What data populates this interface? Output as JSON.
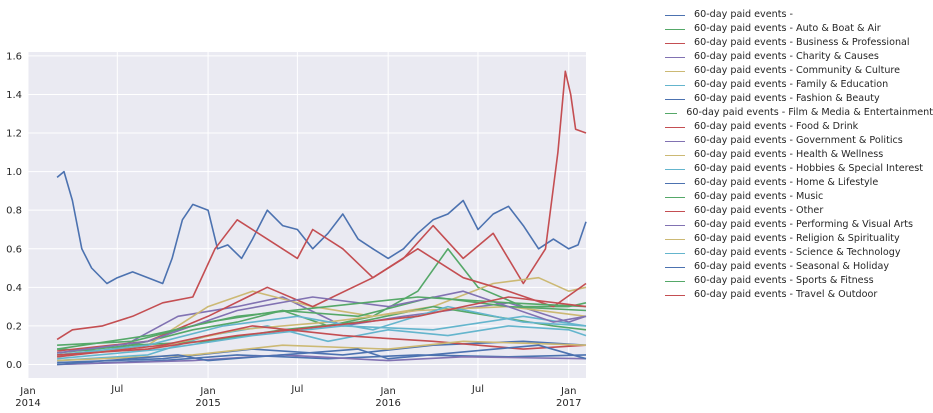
{
  "chart_data": {
    "type": "line",
    "title": "",
    "xlabel": "",
    "ylabel": "",
    "grid": true,
    "legend_position": "outside-right",
    "x_range": [
      "2014-01-01",
      "2017-02-05"
    ],
    "ylim": [
      -0.07,
      1.62
    ],
    "y_ticks": [
      0.0,
      0.2,
      0.4,
      0.6,
      0.8,
      1.0,
      1.2,
      1.4,
      1.6
    ],
    "x_ticks": [
      {
        "date": "2014-01-01",
        "label": "Jan",
        "sub": "2014"
      },
      {
        "date": "2014-07-01",
        "label": "Jul",
        "sub": ""
      },
      {
        "date": "2015-01-01",
        "label": "Jan",
        "sub": "2015"
      },
      {
        "date": "2015-07-01",
        "label": "Jul",
        "sub": ""
      },
      {
        "date": "2016-01-01",
        "label": "Jan",
        "sub": "2016"
      },
      {
        "date": "2016-07-01",
        "label": "Jul",
        "sub": ""
      },
      {
        "date": "2017-01-01",
        "label": "Jan",
        "sub": "2017"
      }
    ],
    "series": [
      {
        "name": "60-day paid events -",
        "color": "#4c72b0",
        "points": [
          [
            "2014-03-01",
            0.97
          ],
          [
            "2014-03-15",
            1.0
          ],
          [
            "2014-04-01",
            0.85
          ],
          [
            "2014-04-20",
            0.6
          ],
          [
            "2014-05-10",
            0.5
          ],
          [
            "2014-06-10",
            0.42
          ],
          [
            "2014-07-01",
            0.45
          ],
          [
            "2014-08-01",
            0.48
          ],
          [
            "2014-09-01",
            0.45
          ],
          [
            "2014-10-01",
            0.42
          ],
          [
            "2014-10-20",
            0.55
          ],
          [
            "2014-11-10",
            0.75
          ],
          [
            "2014-12-01",
            0.83
          ],
          [
            "2015-01-01",
            0.8
          ],
          [
            "2015-01-20",
            0.6
          ],
          [
            "2015-02-10",
            0.62
          ],
          [
            "2015-03-10",
            0.55
          ],
          [
            "2015-04-01",
            0.65
          ],
          [
            "2015-05-01",
            0.8
          ],
          [
            "2015-06-01",
            0.72
          ],
          [
            "2015-07-01",
            0.7
          ],
          [
            "2015-08-01",
            0.6
          ],
          [
            "2015-09-01",
            0.68
          ],
          [
            "2015-10-01",
            0.78
          ],
          [
            "2015-11-01",
            0.65
          ],
          [
            "2015-12-01",
            0.6
          ],
          [
            "2016-01-01",
            0.55
          ],
          [
            "2016-02-01",
            0.6
          ],
          [
            "2016-03-01",
            0.68
          ],
          [
            "2016-04-01",
            0.75
          ],
          [
            "2016-05-01",
            0.78
          ],
          [
            "2016-06-01",
            0.85
          ],
          [
            "2016-07-01",
            0.7
          ],
          [
            "2016-08-01",
            0.78
          ],
          [
            "2016-09-01",
            0.82
          ],
          [
            "2016-10-01",
            0.72
          ],
          [
            "2016-11-01",
            0.6
          ],
          [
            "2016-12-01",
            0.65
          ],
          [
            "2017-01-01",
            0.6
          ],
          [
            "2017-01-20",
            0.62
          ],
          [
            "2017-02-05",
            0.74
          ]
        ]
      },
      {
        "name": "60-day paid events - Auto & Boat & Air",
        "color": "#55a868",
        "points": [
          [
            "2014-03-01",
            0.08
          ],
          [
            "2014-06-01",
            0.07
          ],
          [
            "2014-09-01",
            0.12
          ],
          [
            "2014-12-01",
            0.18
          ],
          [
            "2015-03-01",
            0.22
          ],
          [
            "2015-06-01",
            0.28
          ],
          [
            "2015-09-01",
            0.2
          ],
          [
            "2015-12-01",
            0.25
          ],
          [
            "2016-03-01",
            0.38
          ],
          [
            "2016-05-01",
            0.6
          ],
          [
            "2016-07-01",
            0.4
          ],
          [
            "2016-10-01",
            0.3
          ],
          [
            "2017-01-01",
            0.3
          ],
          [
            "2017-02-05",
            0.32
          ]
        ]
      },
      {
        "name": "60-day paid events - Business & Professional",
        "color": "#c44e52",
        "points": [
          [
            "2014-03-01",
            0.13
          ],
          [
            "2014-04-01",
            0.18
          ],
          [
            "2014-06-01",
            0.2
          ],
          [
            "2014-08-01",
            0.25
          ],
          [
            "2014-10-01",
            0.32
          ],
          [
            "2014-12-01",
            0.35
          ],
          [
            "2015-01-15",
            0.6
          ],
          [
            "2015-03-01",
            0.75
          ],
          [
            "2015-05-01",
            0.65
          ],
          [
            "2015-07-01",
            0.55
          ],
          [
            "2015-08-01",
            0.7
          ],
          [
            "2015-10-01",
            0.6
          ],
          [
            "2015-12-01",
            0.45
          ],
          [
            "2016-02-01",
            0.55
          ],
          [
            "2016-04-01",
            0.72
          ],
          [
            "2016-06-01",
            0.55
          ],
          [
            "2016-08-01",
            0.68
          ],
          [
            "2016-10-01",
            0.42
          ],
          [
            "2016-11-15",
            0.6
          ],
          [
            "2016-12-10",
            1.1
          ],
          [
            "2016-12-25",
            1.52
          ],
          [
            "2017-01-05",
            1.4
          ],
          [
            "2017-01-15",
            1.22
          ],
          [
            "2017-02-05",
            1.2
          ]
        ]
      },
      {
        "name": "60-day paid events - Charity & Causes",
        "color": "#8172b2",
        "points": [
          [
            "2014-03-01",
            0.05
          ],
          [
            "2014-07-01",
            0.08
          ],
          [
            "2014-11-01",
            0.25
          ],
          [
            "2015-03-01",
            0.3
          ],
          [
            "2015-06-01",
            0.35
          ],
          [
            "2015-10-01",
            0.2
          ],
          [
            "2016-02-01",
            0.25
          ],
          [
            "2016-05-01",
            0.28
          ],
          [
            "2016-09-01",
            0.32
          ],
          [
            "2017-01-01",
            0.22
          ],
          [
            "2017-02-05",
            0.25
          ]
        ]
      },
      {
        "name": "60-day paid events - Community & Culture",
        "color": "#ccb974",
        "points": [
          [
            "2014-03-01",
            0.04
          ],
          [
            "2014-09-01",
            0.1
          ],
          [
            "2015-01-01",
            0.3
          ],
          [
            "2015-04-01",
            0.38
          ],
          [
            "2015-08-01",
            0.3
          ],
          [
            "2015-12-01",
            0.25
          ],
          [
            "2016-04-01",
            0.3
          ],
          [
            "2016-08-01",
            0.42
          ],
          [
            "2016-11-01",
            0.45
          ],
          [
            "2017-01-01",
            0.38
          ],
          [
            "2017-02-05",
            0.4
          ]
        ]
      },
      {
        "name": "60-day paid events - Family & Education",
        "color": "#64b5cd",
        "points": [
          [
            "2014-03-01",
            0.02
          ],
          [
            "2014-09-01",
            0.05
          ],
          [
            "2015-01-01",
            0.15
          ],
          [
            "2015-05-01",
            0.2
          ],
          [
            "2015-09-01",
            0.12
          ],
          [
            "2016-01-01",
            0.18
          ],
          [
            "2016-05-01",
            0.15
          ],
          [
            "2016-09-01",
            0.2
          ],
          [
            "2017-01-01",
            0.18
          ],
          [
            "2017-02-05",
            0.15
          ]
        ]
      },
      {
        "name": "60-day paid events - Fashion & Beauty",
        "color": "#4c72b0",
        "points": [
          [
            "2014-03-01",
            0.0
          ],
          [
            "2014-10-01",
            0.02
          ],
          [
            "2015-03-01",
            0.05
          ],
          [
            "2015-09-01",
            0.03
          ],
          [
            "2016-03-01",
            0.05
          ],
          [
            "2016-09-01",
            0.04
          ],
          [
            "2017-02-05",
            0.05
          ]
        ]
      },
      {
        "name": "60-day paid events - Film & Media & Entertainment",
        "color": "#55a868",
        "points": [
          [
            "2014-03-01",
            0.06
          ],
          [
            "2014-08-01",
            0.1
          ],
          [
            "2015-01-01",
            0.12
          ],
          [
            "2015-06-01",
            0.18
          ],
          [
            "2015-11-01",
            0.22
          ],
          [
            "2016-04-01",
            0.3
          ],
          [
            "2016-08-01",
            0.25
          ],
          [
            "2016-12-01",
            0.2
          ],
          [
            "2017-02-05",
            0.18
          ]
        ]
      },
      {
        "name": "60-day paid events - Food & Drink",
        "color": "#c44e52",
        "points": [
          [
            "2014-03-01",
            0.07
          ],
          [
            "2014-09-01",
            0.12
          ],
          [
            "2015-01-01",
            0.25
          ],
          [
            "2015-05-01",
            0.4
          ],
          [
            "2015-08-01",
            0.3
          ],
          [
            "2015-12-01",
            0.45
          ],
          [
            "2016-03-01",
            0.6
          ],
          [
            "2016-06-01",
            0.45
          ],
          [
            "2016-09-01",
            0.38
          ],
          [
            "2016-12-01",
            0.3
          ],
          [
            "2017-02-05",
            0.42
          ]
        ]
      },
      {
        "name": "60-day paid events - Government & Politics",
        "color": "#8172b2",
        "points": [
          [
            "2014-03-01",
            0.0
          ],
          [
            "2014-12-01",
            0.02
          ],
          [
            "2015-06-01",
            0.05
          ],
          [
            "2016-01-01",
            0.02
          ],
          [
            "2016-06-01",
            0.04
          ],
          [
            "2017-02-05",
            0.03
          ]
        ]
      },
      {
        "name": "60-day paid events - Health & Wellness",
        "color": "#ccb974",
        "points": [
          [
            "2014-03-01",
            0.05
          ],
          [
            "2014-09-01",
            0.08
          ],
          [
            "2015-03-01",
            0.18
          ],
          [
            "2015-09-01",
            0.22
          ],
          [
            "2016-03-01",
            0.28
          ],
          [
            "2016-09-01",
            0.3
          ],
          [
            "2017-02-05",
            0.25
          ]
        ]
      },
      {
        "name": "60-day paid events - Hobbies & Special Interest",
        "color": "#64b5cd",
        "points": [
          [
            "2014-03-01",
            0.03
          ],
          [
            "2014-10-01",
            0.08
          ],
          [
            "2015-04-01",
            0.15
          ],
          [
            "2015-10-01",
            0.2
          ],
          [
            "2016-04-01",
            0.18
          ],
          [
            "2016-10-01",
            0.25
          ],
          [
            "2017-02-05",
            0.2
          ]
        ]
      },
      {
        "name": "60-day paid events - Home & Lifestyle",
        "color": "#4c72b0",
        "points": [
          [
            "2014-03-01",
            0.01
          ],
          [
            "2014-10-01",
            0.03
          ],
          [
            "2015-04-01",
            0.08
          ],
          [
            "2015-10-01",
            0.05
          ],
          [
            "2016-04-01",
            0.1
          ],
          [
            "2016-10-01",
            0.12
          ],
          [
            "2017-02-05",
            0.1
          ]
        ]
      },
      {
        "name": "60-day paid events - Music",
        "color": "#55a868",
        "points": [
          [
            "2014-03-01",
            0.1
          ],
          [
            "2014-08-01",
            0.12
          ],
          [
            "2015-01-01",
            0.22
          ],
          [
            "2015-06-01",
            0.28
          ],
          [
            "2015-11-01",
            0.25
          ],
          [
            "2016-04-01",
            0.35
          ],
          [
            "2016-09-01",
            0.3
          ],
          [
            "2017-02-05",
            0.28
          ]
        ]
      },
      {
        "name": "60-day paid events - Other",
        "color": "#c44e52",
        "points": [
          [
            "2014-03-01",
            0.04
          ],
          [
            "2014-10-01",
            0.1
          ],
          [
            "2015-04-01",
            0.2
          ],
          [
            "2015-10-01",
            0.15
          ],
          [
            "2016-04-01",
            0.12
          ],
          [
            "2016-10-01",
            0.08
          ],
          [
            "2017-02-05",
            0.1
          ]
        ]
      },
      {
        "name": "60-day paid events - Performing & Visual Arts",
        "color": "#8172b2",
        "points": [
          [
            "2014-03-01",
            0.06
          ],
          [
            "2014-09-01",
            0.12
          ],
          [
            "2015-03-01",
            0.28
          ],
          [
            "2015-08-01",
            0.35
          ],
          [
            "2016-01-01",
            0.3
          ],
          [
            "2016-06-01",
            0.38
          ],
          [
            "2016-12-01",
            0.22
          ],
          [
            "2017-02-05",
            0.25
          ]
        ]
      },
      {
        "name": "60-day paid events - Religion & Spirituality",
        "color": "#ccb974",
        "points": [
          [
            "2014-03-01",
            0.02
          ],
          [
            "2014-12-01",
            0.05
          ],
          [
            "2015-06-01",
            0.1
          ],
          [
            "2016-01-01",
            0.08
          ],
          [
            "2016-06-01",
            0.12
          ],
          [
            "2017-02-05",
            0.1
          ]
        ]
      },
      {
        "name": "60-day paid events - Science & Technology",
        "color": "#64b5cd",
        "points": [
          [
            "2014-03-01",
            0.05
          ],
          [
            "2014-09-01",
            0.1
          ],
          [
            "2015-02-01",
            0.2
          ],
          [
            "2015-07-01",
            0.25
          ],
          [
            "2015-12-01",
            0.18
          ],
          [
            "2016-05-01",
            0.3
          ],
          [
            "2016-10-01",
            0.22
          ],
          [
            "2017-02-05",
            0.2
          ]
        ]
      },
      {
        "name": "60-day paid events - Seasonal & Holiday",
        "color": "#4c72b0",
        "points": [
          [
            "2014-03-01",
            0.0
          ],
          [
            "2014-11-01",
            0.05
          ],
          [
            "2015-01-01",
            0.02
          ],
          [
            "2015-11-01",
            0.08
          ],
          [
            "2016-01-01",
            0.03
          ],
          [
            "2016-11-01",
            0.1
          ],
          [
            "2017-02-05",
            0.03
          ]
        ]
      },
      {
        "name": "60-day paid events - Sports & Fitness",
        "color": "#55a868",
        "points": [
          [
            "2014-03-01",
            0.08
          ],
          [
            "2014-09-01",
            0.15
          ],
          [
            "2015-03-01",
            0.25
          ],
          [
            "2015-09-01",
            0.3
          ],
          [
            "2016-03-01",
            0.35
          ],
          [
            "2016-09-01",
            0.32
          ],
          [
            "2017-02-05",
            0.3
          ]
        ]
      },
      {
        "name": "60-day paid events - Travel & Outdoor",
        "color": "#c44e52",
        "points": [
          [
            "2014-03-01",
            0.05
          ],
          [
            "2014-09-01",
            0.08
          ],
          [
            "2015-03-01",
            0.15
          ],
          [
            "2015-09-01",
            0.2
          ],
          [
            "2016-03-01",
            0.25
          ],
          [
            "2016-09-01",
            0.35
          ],
          [
            "2017-02-05",
            0.3
          ]
        ]
      }
    ]
  }
}
